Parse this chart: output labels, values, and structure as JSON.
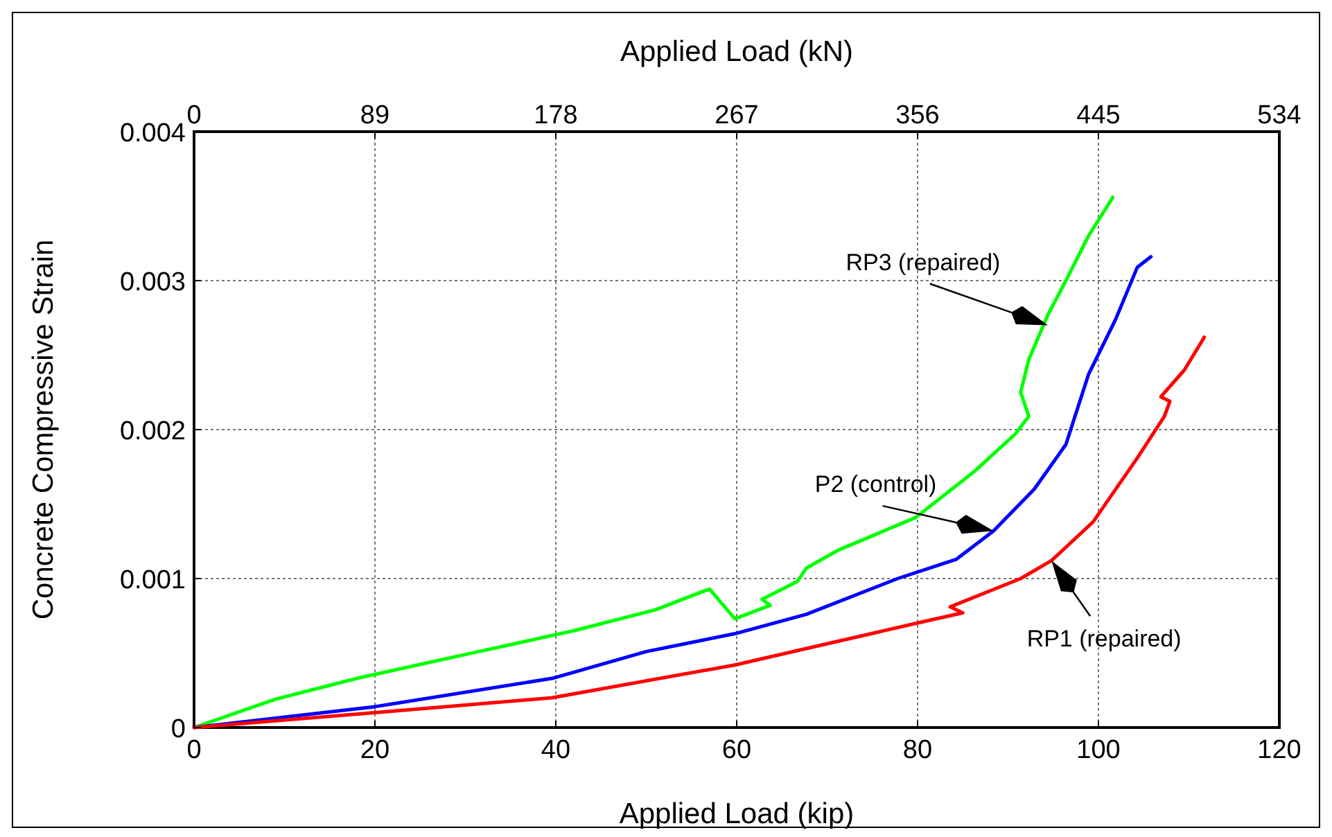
{
  "chart_data": {
    "type": "line",
    "xlabel": "Applied Load (kip)",
    "ylabel": "Concrete Compressive Strain",
    "x2label": "Applied Load (kN)",
    "xlim": [
      0,
      120
    ],
    "xticks": [
      0,
      20,
      40,
      60,
      80,
      100,
      120
    ],
    "x2lim": [
      0,
      534
    ],
    "x2ticks": [
      0,
      89,
      178,
      267,
      356,
      445,
      534
    ],
    "ylim": [
      0,
      0.004
    ],
    "yticks": [
      0,
      0.001,
      0.002,
      0.003,
      0.004
    ],
    "grid": true,
    "line_style": "solid",
    "marker": "none",
    "series": [
      {
        "color": "#00ff00",
        "x": [
          0,
          9,
          18,
          30,
          42,
          51,
          57,
          59.8,
          63.7,
          62.8,
          66.7,
          67.7,
          71.2,
          79.8,
          86.3,
          90.8,
          92.3,
          91.4,
          92.3,
          94.4,
          96.4,
          98.9,
          101.6
        ],
        "values": [
          0,
          0.00019,
          0.00033,
          0.00049,
          0.00065,
          0.00079,
          0.00093,
          0.00073,
          0.00082,
          0.00086,
          0.00098,
          0.00107,
          0.00119,
          0.00141,
          0.00172,
          0.00197,
          0.00209,
          0.00225,
          0.00247,
          0.00277,
          0.003,
          0.0033,
          0.00356
        ]
      },
      {
        "color": "#0000ff",
        "x": [
          0,
          20,
          39.6,
          50,
          59.8,
          67.7,
          77.8,
          84.3,
          88.4,
          92.9,
          96.4,
          98.9,
          101.9,
          104.3,
          105.8
        ],
        "values": [
          0,
          0.00014,
          0.00033,
          0.00051,
          0.00063,
          0.00076,
          0.001,
          0.00113,
          0.00132,
          0.0016,
          0.0019,
          0.00237,
          0.00274,
          0.00309,
          0.00316
        ]
      },
      {
        "color": "#ff0000",
        "x": [
          0,
          20,
          39.6,
          59.8,
          67.7,
          81.3,
          85,
          83.6,
          91.4,
          94.8,
          99.4,
          104.3,
          107.3,
          107.9,
          106.9,
          109.5,
          111.7
        ],
        "values": [
          0,
          0.0001,
          0.0002,
          0.00042,
          0.00053,
          0.00072,
          0.00077,
          0.00081,
          0.001,
          0.00112,
          0.00138,
          0.00181,
          0.00209,
          0.00219,
          0.00222,
          0.0024,
          0.00262
        ]
      }
    ],
    "annotations": [
      {
        "text": "RP3 (repaired)",
        "x": 94.4,
        "y": 0.0027
      },
      {
        "text": "P2 (control)",
        "x": 88.4,
        "y": 0.00132
      },
      {
        "text": "RP1 (repaired)",
        "x": 94.8,
        "y": 0.00112
      }
    ]
  }
}
